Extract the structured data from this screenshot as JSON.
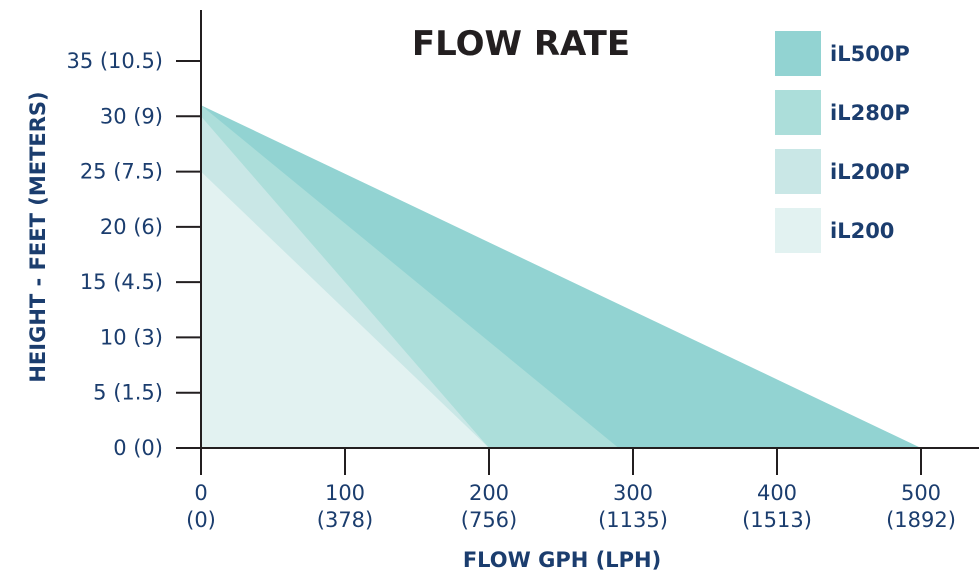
{
  "chart_data": {
    "type": "area",
    "title": "FLOW RATE",
    "xlabel": "FLOW GPH (LPH)",
    "ylabel": "HEIGHT - FEET (METERS)",
    "xlim": [
      0,
      500
    ],
    "ylim": [
      0,
      35
    ],
    "x_ticks": [
      {
        "value": 0,
        "line1": "0",
        "line2": "(0)"
      },
      {
        "value": 100,
        "line1": "100",
        "line2": "(378)"
      },
      {
        "value": 200,
        "line1": "200",
        "line2": "(756)"
      },
      {
        "value": 300,
        "line1": "300",
        "line2": "(1135)"
      },
      {
        "value": 400,
        "line1": "400",
        "line2": "(1513)"
      },
      {
        "value": 500,
        "line1": "500",
        "line2": "(1892)"
      }
    ],
    "y_ticks": [
      {
        "value": 0,
        "label": "0 (0)"
      },
      {
        "value": 5,
        "label": "5 (1.5)"
      },
      {
        "value": 10,
        "label": "10 (3)"
      },
      {
        "value": 15,
        "label": "15 (4.5)"
      },
      {
        "value": 20,
        "label": "20 (6)"
      },
      {
        "value": 25,
        "label": "25 (7.5)"
      },
      {
        "value": 30,
        "label": "30 (9)"
      },
      {
        "value": 35,
        "label": "35 (10.5)"
      }
    ],
    "series": [
      {
        "name": "iL500P",
        "color": "#92d3d2",
        "points": [
          [
            0,
            31
          ],
          [
            500,
            0
          ]
        ]
      },
      {
        "name": "iL280P",
        "color": "#acdeda",
        "points": [
          [
            0,
            31
          ],
          [
            290,
            0
          ]
        ]
      },
      {
        "name": "iL200P",
        "color": "#c9e7e6",
        "points": [
          [
            0,
            30
          ],
          [
            200,
            0
          ]
        ]
      },
      {
        "name": "iL200",
        "color": "#e2f2f1",
        "points": [
          [
            0,
            25
          ],
          [
            200,
            0
          ]
        ]
      }
    ],
    "legend_position": "top-right",
    "colors": {
      "axis": "#231f20",
      "text": "#1b3d6e",
      "title": "#231f20"
    }
  }
}
